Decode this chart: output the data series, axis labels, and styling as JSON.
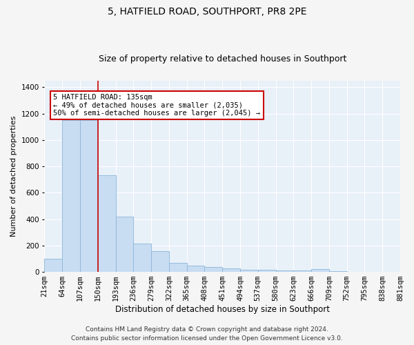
{
  "title": "5, HATFIELD ROAD, SOUTHPORT, PR8 2PE",
  "subtitle": "Size of property relative to detached houses in Southport",
  "xlabel": "Distribution of detached houses by size in Southport",
  "ylabel": "Number of detached properties",
  "bar_labels": [
    "21sqm",
    "64sqm",
    "107sqm",
    "150sqm",
    "193sqm",
    "236sqm",
    "279sqm",
    "322sqm",
    "365sqm",
    "408sqm",
    "451sqm",
    "494sqm",
    "537sqm",
    "580sqm",
    "623sqm",
    "666sqm",
    "709sqm",
    "752sqm",
    "795sqm",
    "838sqm",
    "881sqm"
  ],
  "bar_heights": [
    100,
    1150,
    1150,
    730,
    420,
    215,
    155,
    70,
    50,
    35,
    25,
    18,
    15,
    12,
    12,
    20,
    8,
    0,
    0,
    0
  ],
  "bar_color": "#c8ddf2",
  "bar_edge_color": "#8ab4d8",
  "background_color": "#e8f0f8",
  "grid_color": "#ffffff",
  "annotation_box_text": "5 HATFIELD ROAD: 135sqm\n← 49% of detached houses are smaller (2,035)\n50% of semi-detached houses are larger (2,045) →",
  "annotation_box_color": "#ffffff",
  "annotation_box_edge_color": "#cc0000",
  "redline_bar_index": 2,
  "ylim": [
    0,
    1450
  ],
  "yticks": [
    0,
    200,
    400,
    600,
    800,
    1000,
    1200,
    1400
  ],
  "footer_line1": "Contains HM Land Registry data © Crown copyright and database right 2024.",
  "footer_line2": "Contains public sector information licensed under the Open Government Licence v3.0.",
  "title_fontsize": 10,
  "subtitle_fontsize": 9,
  "xlabel_fontsize": 8.5,
  "ylabel_fontsize": 8,
  "tick_fontsize": 7.5,
  "annotation_fontsize": 7.5,
  "footer_fontsize": 6.5,
  "fig_facecolor": "#f5f5f5"
}
